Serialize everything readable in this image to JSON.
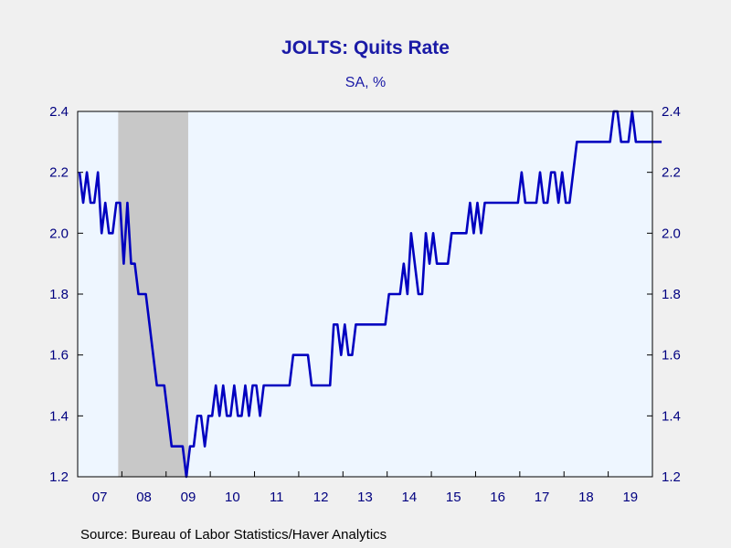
{
  "chart_data": {
    "type": "line",
    "title": "JOLTS: Quits Rate",
    "subtitle": "SA, %",
    "source": "Source:  Bureau of Labor Statistics/Haver Analytics",
    "x_start": "2007-01",
    "x_end": "2019-12",
    "x_tick_labels": [
      "07",
      "08",
      "09",
      "10",
      "11",
      "12",
      "13",
      "14",
      "15",
      "16",
      "17",
      "18",
      "19"
    ],
    "ylim": [
      1.2,
      2.4
    ],
    "y_ticks": [
      "1.2",
      "1.4",
      "1.6",
      "1.8",
      "2.0",
      "2.2",
      "2.4"
    ],
    "y_tick_values": [
      1.2,
      1.4,
      1.6,
      1.8,
      2.0,
      2.2,
      2.4
    ],
    "recession": {
      "start": "2007-12",
      "end": "2009-06",
      "color": "#c8c8c8"
    },
    "colors": {
      "line": "#0000c0",
      "plot_background": "#eef6ff",
      "page_background": "#f0f0f0"
    },
    "series": [
      {
        "values": [
          2.2,
          2.1,
          2.2,
          2.1,
          2.1,
          2.2,
          2.0,
          2.1,
          2.0,
          2.0,
          2.1,
          2.1,
          1.9,
          2.1,
          1.9,
          1.9,
          1.8,
          1.8,
          1.8,
          1.7,
          1.6,
          1.5,
          1.5,
          1.5,
          1.4,
          1.3,
          1.3,
          1.3,
          1.3,
          1.2,
          1.3,
          1.3,
          1.4,
          1.4,
          1.3,
          1.4,
          1.4,
          1.5,
          1.4,
          1.5,
          1.4,
          1.4,
          1.5,
          1.4,
          1.4,
          1.5,
          1.4,
          1.5,
          1.5,
          1.4,
          1.5,
          1.5,
          1.5,
          1.5,
          1.5,
          1.5,
          1.5,
          1.5,
          1.6,
          1.6,
          1.6,
          1.6,
          1.6,
          1.5,
          1.5,
          1.5,
          1.5,
          1.5,
          1.5,
          1.7,
          1.7,
          1.6,
          1.7,
          1.6,
          1.6,
          1.7,
          1.7,
          1.7,
          1.7,
          1.7,
          1.7,
          1.7,
          1.7,
          1.7,
          1.8,
          1.8,
          1.8,
          1.8,
          1.9,
          1.8,
          2.0,
          1.9,
          1.8,
          1.8,
          2.0,
          1.9,
          2.0,
          1.9,
          1.9,
          1.9,
          1.9,
          2.0,
          2.0,
          2.0,
          2.0,
          2.0,
          2.1,
          2.0,
          2.1,
          2.0,
          2.1,
          2.1,
          2.1,
          2.1,
          2.1,
          2.1,
          2.1,
          2.1,
          2.1,
          2.1,
          2.2,
          2.1,
          2.1,
          2.1,
          2.1,
          2.2,
          2.1,
          2.1,
          2.2,
          2.2,
          2.1,
          2.2,
          2.1,
          2.1,
          2.2,
          2.3,
          2.3,
          2.3,
          2.3,
          2.3,
          2.3,
          2.3,
          2.3,
          2.3,
          2.3,
          2.4,
          2.4,
          2.3,
          2.3,
          2.3,
          2.4,
          2.3,
          2.3,
          2.3,
          2.3,
          2.3,
          2.3,
          2.3,
          2.3
        ]
      }
    ]
  }
}
